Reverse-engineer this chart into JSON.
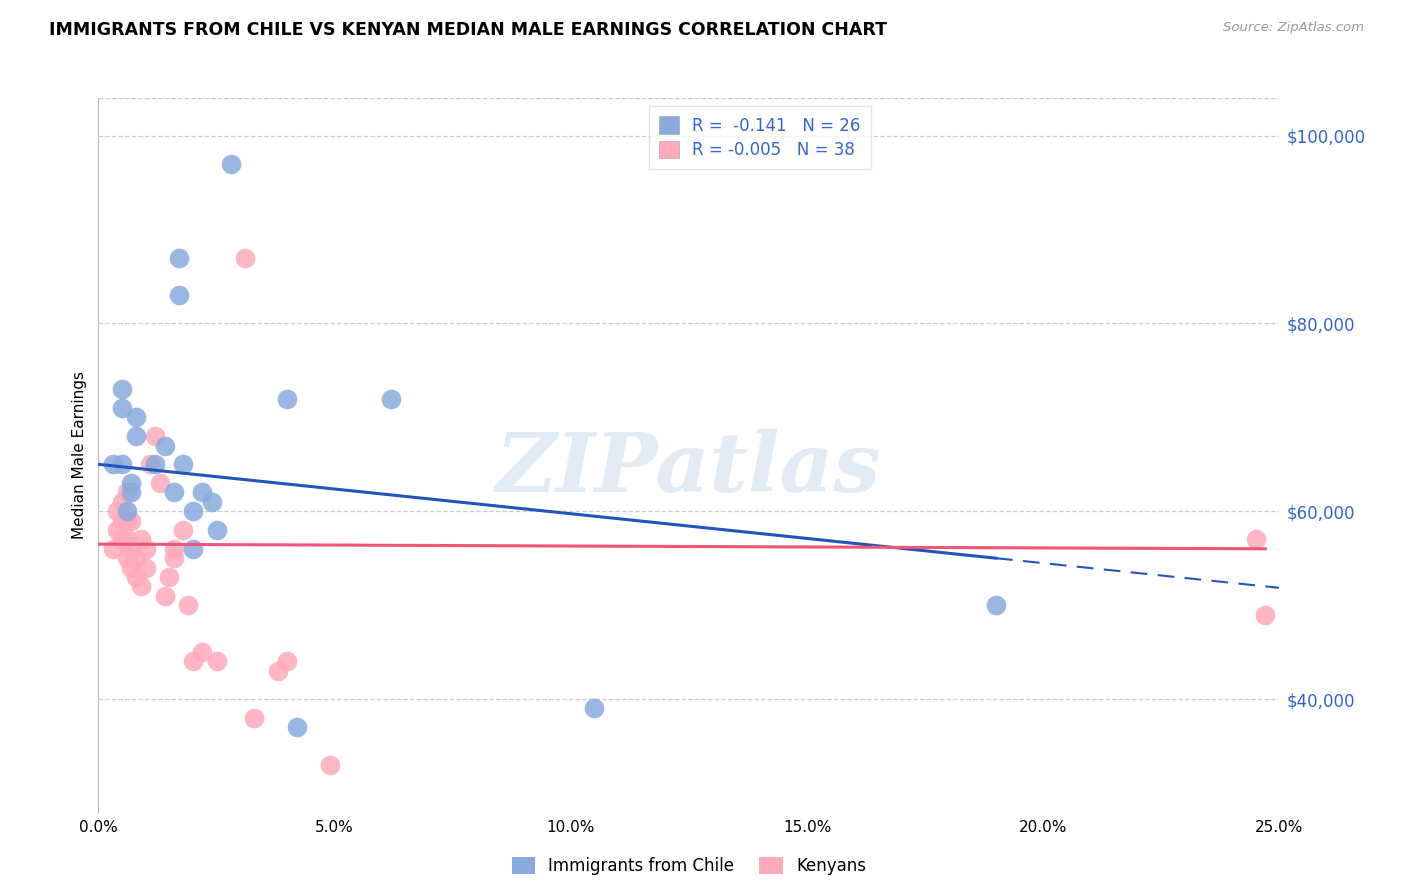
{
  "title": "IMMIGRANTS FROM CHILE VS KENYAN MEDIAN MALE EARNINGS CORRELATION CHART",
  "source": "Source: ZipAtlas.com",
  "ylabel": "Median Male Earnings",
  "yticks": [
    40000,
    60000,
    80000,
    100000
  ],
  "ytick_labels": [
    "$40,000",
    "$60,000",
    "$80,000",
    "$100,000"
  ],
  "xticks": [
    0.0,
    0.05,
    0.1,
    0.15,
    0.2,
    0.25
  ],
  "xtick_labels": [
    "0.0%",
    "5.0%",
    "10.0%",
    "15.0%",
    "20.0%",
    "25.0%"
  ],
  "xmin": 0.0,
  "xmax": 0.25,
  "ymin": 28000,
  "ymax": 104000,
  "legend_blue_r": "-0.141",
  "legend_blue_n": "26",
  "legend_pink_r": "-0.005",
  "legend_pink_n": "38",
  "color_blue": "#88AADD",
  "color_pink": "#FFAABB",
  "color_blue_line": "#2255BB",
  "color_pink_line": "#EE5577",
  "color_label_blue": "#3366CC",
  "watermark": "ZIPatlas",
  "chile_x": [
    0.003,
    0.005,
    0.005,
    0.005,
    0.006,
    0.007,
    0.007,
    0.008,
    0.008,
    0.012,
    0.014,
    0.016,
    0.017,
    0.017,
    0.018,
    0.02,
    0.02,
    0.022,
    0.024,
    0.025,
    0.028,
    0.04,
    0.042,
    0.062,
    0.105,
    0.19
  ],
  "chile_y": [
    65000,
    73000,
    71000,
    65000,
    60000,
    63000,
    62000,
    68000,
    70000,
    65000,
    67000,
    62000,
    87000,
    83000,
    65000,
    56000,
    60000,
    62000,
    61000,
    58000,
    97000,
    72000,
    37000,
    72000,
    39000,
    50000
  ],
  "kenya_x": [
    0.003,
    0.004,
    0.004,
    0.005,
    0.005,
    0.005,
    0.006,
    0.006,
    0.006,
    0.006,
    0.007,
    0.007,
    0.007,
    0.008,
    0.008,
    0.009,
    0.009,
    0.01,
    0.01,
    0.011,
    0.012,
    0.013,
    0.014,
    0.015,
    0.016,
    0.016,
    0.018,
    0.019,
    0.02,
    0.022,
    0.025,
    0.031,
    0.033,
    0.038,
    0.04,
    0.049,
    0.245,
    0.247
  ],
  "kenya_y": [
    56000,
    58000,
    60000,
    57000,
    59000,
    61000,
    55000,
    57000,
    59000,
    62000,
    54000,
    56000,
    59000,
    53000,
    55000,
    52000,
    57000,
    54000,
    56000,
    65000,
    68000,
    63000,
    51000,
    53000,
    56000,
    55000,
    58000,
    50000,
    44000,
    45000,
    44000,
    87000,
    38000,
    43000,
    44000,
    33000,
    57000,
    49000
  ],
  "blue_line_x0": 0.0,
  "blue_line_y0": 65000,
  "blue_line_x1": 0.19,
  "blue_line_y1": 55000,
  "pink_line_x0": 0.0,
  "pink_line_y0": 56500,
  "pink_line_x1": 0.247,
  "pink_line_y1": 56000
}
